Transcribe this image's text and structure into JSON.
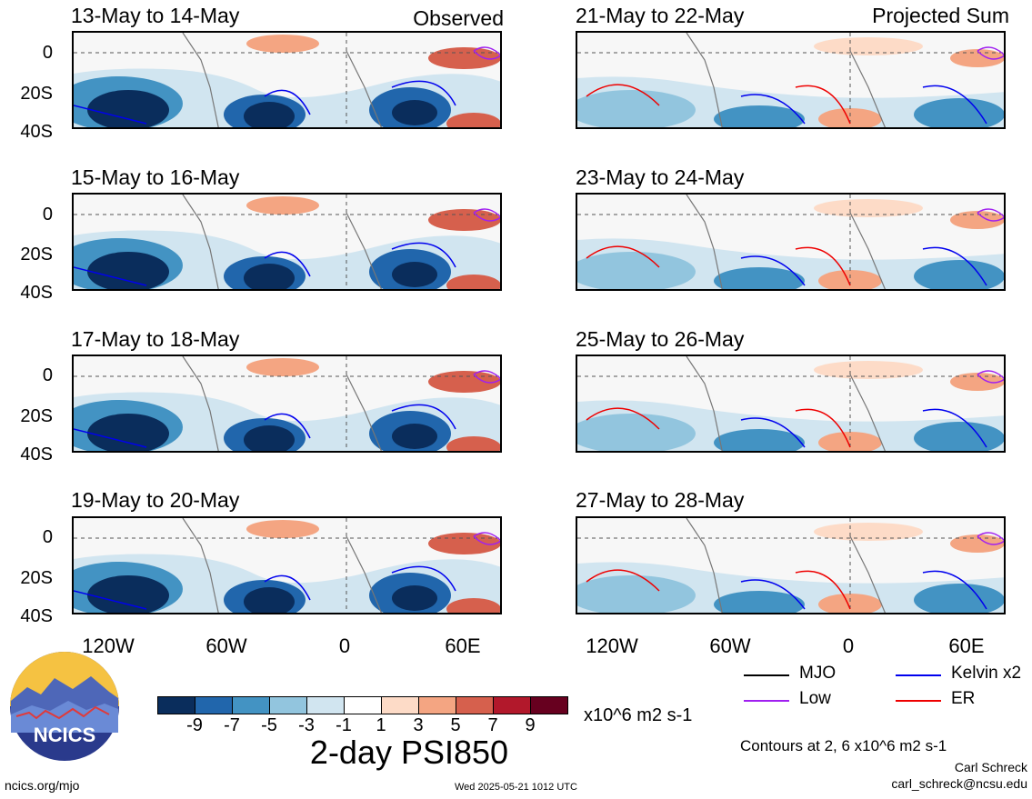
{
  "observed_label": "Observed",
  "projected_label": "Projected Sum",
  "panels_left": [
    {
      "title": "13-May to 14-May"
    },
    {
      "title": "15-May to 16-May"
    },
    {
      "title": "17-May to 18-May"
    },
    {
      "title": "19-May to 20-May"
    }
  ],
  "panels_right": [
    {
      "title": "21-May to 22-May"
    },
    {
      "title": "23-May to 24-May"
    },
    {
      "title": "25-May to 26-May"
    },
    {
      "title": "27-May to 28-May"
    }
  ],
  "y_ticks": [
    "0",
    "20S",
    "40S"
  ],
  "x_ticks": [
    "120W",
    "60W",
    "0",
    "60E"
  ],
  "colorbar": {
    "labels": [
      "-9",
      "-7",
      "-5",
      "-3",
      "-1",
      "1",
      "3",
      "5",
      "7",
      "9"
    ],
    "colors": [
      "#0a2d5c",
      "#2166ac",
      "#4393c3",
      "#92c5de",
      "#d1e5f0",
      "#ffffff",
      "#fddbc7",
      "#f4a582",
      "#d6604d",
      "#b2182b",
      "#67001f"
    ],
    "units": "x10^6 m2 s-1"
  },
  "main_title": "2-day PSI850",
  "legend": {
    "mjo": {
      "label": "MJO",
      "color": "#000000"
    },
    "low": {
      "label": "Low",
      "color": "#a020f0"
    },
    "kelvin": {
      "label": "Kelvin x2",
      "color": "#0000ee"
    },
    "er": {
      "label": "ER",
      "color": "#ee0000"
    }
  },
  "contours_note": "Contours at 2, 6 x10^6 m2 s-1",
  "author": "Carl Schreck",
  "email": "carl_schreck@ncsu.edu",
  "website": "ncics.org/mjo",
  "timestamp": "Wed 2025-05-21 1012 UTC",
  "logo_text": "NCICS"
}
